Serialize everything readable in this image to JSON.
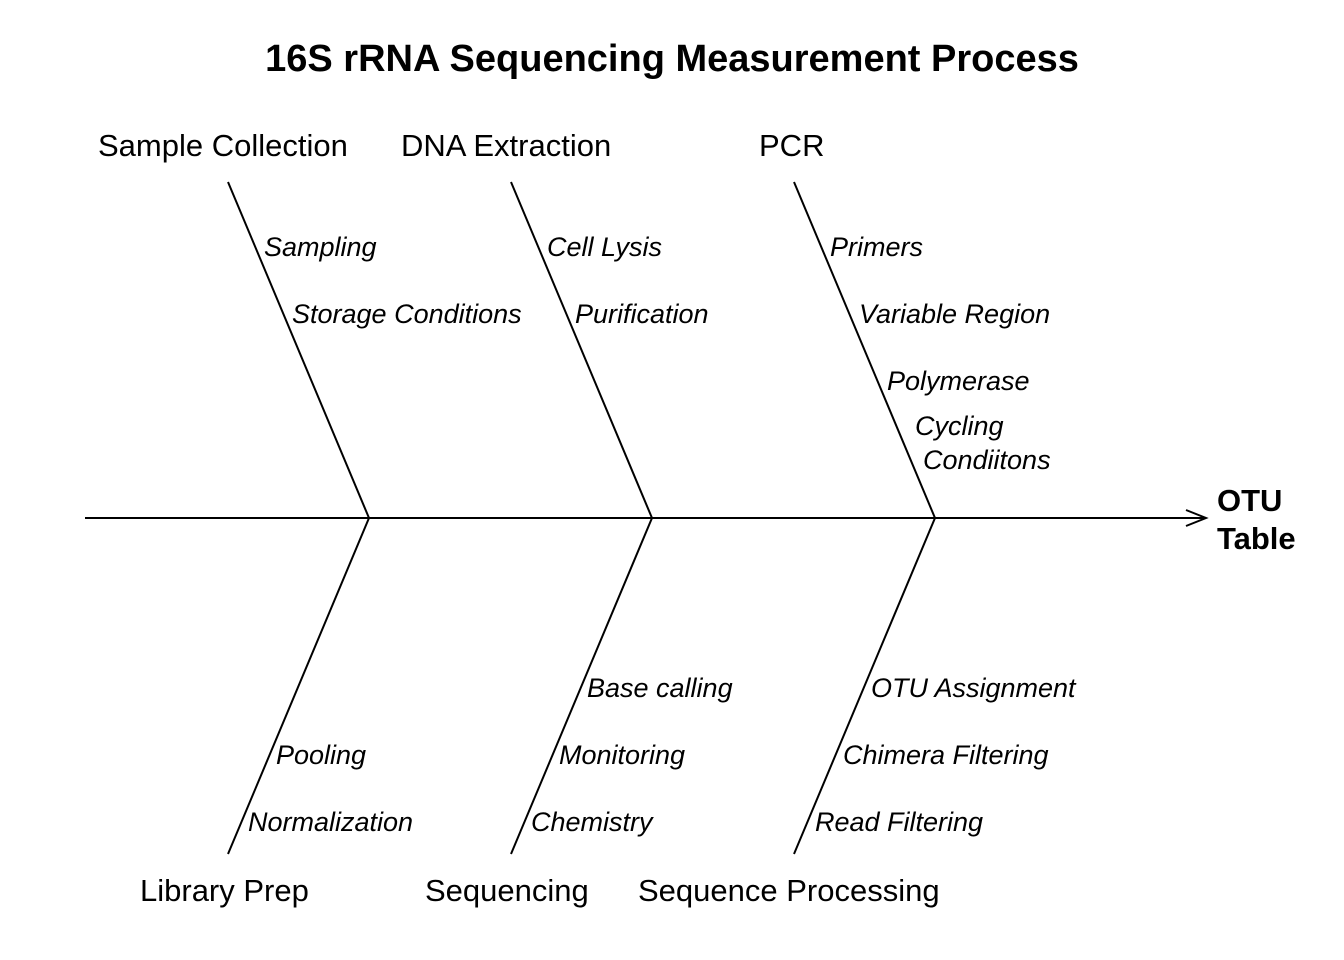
{
  "title": "16S rRNA Sequencing Measurement Process",
  "effect": {
    "line1": "OTU",
    "line2": "Table"
  },
  "categories": {
    "sample_collection": {
      "label": "Sample Collection",
      "causes": [
        "Sampling",
        "Storage Conditions"
      ]
    },
    "dna_extraction": {
      "label": "DNA Extraction",
      "causes": [
        "Cell Lysis",
        "Purification"
      ]
    },
    "pcr": {
      "label": "PCR",
      "causes": [
        "Primers",
        "Variable Region",
        "Polymerase",
        "Cycling",
        "Condiitons"
      ]
    },
    "library_prep": {
      "label": "Library Prep",
      "causes": [
        "Pooling",
        "Normalization"
      ]
    },
    "sequencing": {
      "label": "Sequencing",
      "causes": [
        "Base calling",
        "Monitoring",
        "Chemistry"
      ]
    },
    "sequence_processing": {
      "label": "Sequence Processing",
      "causes": [
        "OTU Assignment",
        "Chimera Filtering",
        "Read Filtering"
      ]
    }
  },
  "colors": {
    "line": "#000000",
    "text": "#000000",
    "background": "#ffffff"
  }
}
